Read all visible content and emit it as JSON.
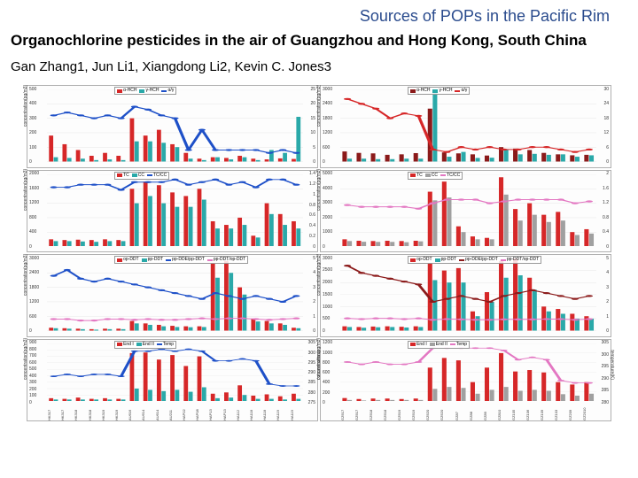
{
  "header_title": "Sources of POPs in the Pacific Rim",
  "paper_title": "Organochlorine pesticides in the air of Guangzhou and Hong Kong, South China",
  "authors": "Gan Zhang1, Jun Li1, Xiangdong Li2, Kevin C. Jones3",
  "colors": {
    "blue": "#1e50c8",
    "red": "#d62728",
    "teal": "#2aa9a9",
    "darkred": "#8b1a1a",
    "pink": "#e377c2",
    "grid": "#e0e0e0",
    "axis": "#666666",
    "bg": "#fdfdfd"
  },
  "cities": {
    "left": "Hong Kong",
    "right": "Guangzhou"
  },
  "x_categories_left": [
    "HK317",
    "HK317",
    "HK318",
    "HK318",
    "HK319",
    "HK319",
    "AU616",
    "AU614",
    "AU614",
    "AU211",
    "HAP02",
    "HAP08",
    "HAP13",
    "HAP13",
    "HA112",
    "HA118",
    "HA118",
    "HA119",
    "HA119"
  ],
  "x_categories_right": [
    "GZ617",
    "GZ617",
    "GZ618",
    "GZ618",
    "GZ619",
    "GZ619",
    "GZ620",
    "GZ620",
    "GZ87",
    "GZ88",
    "GZ89",
    "GZ810",
    "GZ105",
    "GZ106",
    "GZ109",
    "GZ103",
    "GZ209",
    "GZ2010"
  ],
  "rows": [
    {
      "name": "hch",
      "panels": [
        {
          "side": "left",
          "ylabel": "concentration(pg/m3)",
          "y2label": "",
          "series": [
            {
              "label": "α-HCH",
              "type": "bar",
              "color": "#d62728",
              "values": [
                180,
                120,
                80,
                40,
                60,
                40,
                300,
                180,
                220,
                120,
                60,
                20,
                30,
                25,
                40,
                20,
                15,
                22,
                18
              ]
            },
            {
              "label": "γ-HCH",
              "type": "bar",
              "color": "#2aa9a9",
              "values": [
                30,
                25,
                20,
                10,
                15,
                10,
                140,
                140,
                130,
                100,
                20,
                10,
                30,
                15,
                30,
                10,
                80,
                60,
                310
              ]
            },
            {
              "label": "α/γ",
              "type": "line",
              "color": "#1e50c8",
              "values": [
                16,
                17,
                16,
                15,
                16,
                15,
                19,
                18,
                16,
                15,
                4,
                11,
                4,
                4,
                4,
                4,
                3,
                4,
                3
              ]
            }
          ],
          "ylim": [
            0,
            500
          ],
          "ytick_step": 100,
          "y2lim": [
            0,
            25
          ],
          "y2tick_step": 5
        },
        {
          "side": "right",
          "ylabel": "concentration(pg/m3)",
          "y2label": "",
          "series": [
            {
              "label": "α-HCH",
              "type": "bar",
              "color": "#8b1a1a",
              "values": [
                420,
                360,
                340,
                280,
                300,
                350,
                2200,
                380,
                340,
                300,
                250,
                600,
                540,
                480,
                360,
                300,
                260,
                280
              ]
            },
            {
              "label": "γ-HCH",
              "type": "bar",
              "color": "#2aa9a9",
              "values": [
                120,
                120,
                100,
                100,
                120,
                120,
                2900,
                200,
                400,
                150,
                160,
                500,
                300,
                320,
                280,
                300,
                200,
                260
              ]
            },
            {
              "label": "α/γ",
              "type": "line",
              "color": "#d62728",
              "values": [
                26,
                24,
                22,
                18,
                20,
                19,
                5,
                4,
                6,
                5,
                6,
                5,
                5,
                6,
                6,
                5,
                4,
                5
              ]
            }
          ],
          "ylim": [
            0,
            3000
          ],
          "ytick_step": 600,
          "y2lim": [
            0,
            30
          ],
          "y2tick_step": 6
        }
      ]
    },
    {
      "name": "chlordane",
      "panels": [
        {
          "side": "left",
          "ylabel": "concentration(pg/m3)",
          "y2label": "",
          "series": [
            {
              "label": "TC",
              "type": "bar",
              "color": "#d62728",
              "values": [
                200,
                180,
                190,
                180,
                200,
                180,
                1600,
                1800,
                1700,
                1500,
                1400,
                1600,
                700,
                600,
                800,
                300,
                1200,
                900,
                700
              ]
            },
            {
              "label": "CC",
              "type": "bar",
              "color": "#2aa9a9",
              "values": [
                150,
                150,
                140,
                130,
                150,
                150,
                1200,
                1400,
                1200,
                1100,
                1100,
                1300,
                500,
                500,
                600,
                250,
                900,
                600,
                500
              ]
            },
            {
              "label": "TC/CC",
              "type": "line",
              "color": "#1e50c8",
              "values": [
                1.15,
                1.15,
                1.2,
                1.2,
                1.2,
                1.1,
                1.25,
                1.25,
                1.25,
                1.3,
                1.2,
                1.25,
                1.3,
                1.2,
                1.25,
                1.15,
                1.3,
                1.3,
                1.2
              ]
            }
          ],
          "ylim": [
            0,
            2000
          ],
          "ytick_step": 400,
          "y2lim": [
            0,
            1.4
          ],
          "y2tick_step": 0.2
        },
        {
          "side": "right",
          "ylabel": "concentration(pg/m3)",
          "y2label": "",
          "series": [
            {
              "label": "TC",
              "type": "bar",
              "color": "#d62728",
              "values": [
                500,
                400,
                380,
                400,
                380,
                400,
                3800,
                4500,
                1400,
                700,
                600,
                4800,
                2600,
                3000,
                2200,
                2400,
                1000,
                1200
              ]
            },
            {
              "label": "CC",
              "type": "bar",
              "color": "#a0a0a0",
              "values": [
                380,
                330,
                320,
                320,
                300,
                360,
                3200,
                3400,
                1000,
                500,
                500,
                3600,
                1800,
                2200,
                1700,
                1800,
                800,
                900
              ]
            },
            {
              "label": "TC/CC",
              "type": "line",
              "color": "#e377c2",
              "values": [
                1.15,
                1.1,
                1.1,
                1.1,
                1.1,
                1.05,
                1.2,
                1.3,
                1.3,
                1.3,
                1.2,
                1.25,
                1.3,
                1.3,
                1.3,
                1.3,
                1.2,
                1.25
              ]
            }
          ],
          "ylim": [
            0,
            5000
          ],
          "ytick_step": 1000,
          "y2lim": [
            0,
            2.0
          ],
          "y2tick_step": 0.4
        }
      ]
    },
    {
      "name": "ddt",
      "panels": [
        {
          "side": "left",
          "ylabel": "concentration(pg/m3)",
          "y2label": "",
          "series": [
            {
              "label": "op-DDT",
              "type": "bar",
              "color": "#d62728",
              "values": [
                120,
                100,
                80,
                60,
                80,
                80,
                400,
                300,
                240,
                200,
                180,
                180,
                2800,
                2900,
                1800,
                500,
                400,
                300,
                120
              ]
            },
            {
              "label": "pp-DDT",
              "type": "bar",
              "color": "#2aa9a9",
              "values": [
                100,
                80,
                60,
                40,
                60,
                60,
                300,
                240,
                180,
                150,
                140,
                150,
                2200,
                2400,
                1500,
                380,
                300,
                240,
                100
              ]
            },
            {
              "label": "pp-DDE/pp-DDT",
              "type": "line",
              "color": "#1e50c8",
              "values": [
                3.8,
                4.2,
                3.6,
                3.4,
                3.6,
                3.4,
                3.2,
                3.0,
                2.8,
                2.6,
                2.4,
                2.2,
                2.6,
                2.4,
                2.2,
                2.4,
                2.2,
                2.0,
                2.4
              ]
            },
            {
              "label": "pp-DDT/op-DDT",
              "type": "line",
              "color": "#e377c2",
              "values": [
                0.8,
                0.8,
                0.7,
                0.7,
                0.8,
                0.8,
                0.75,
                0.8,
                0.75,
                0.75,
                0.8,
                0.85,
                0.8,
                0.85,
                0.85,
                0.8,
                0.75,
                0.8,
                0.85
              ]
            }
          ],
          "ylim": [
            0,
            3000
          ],
          "ytick_step": 600,
          "y2lim": [
            0,
            5.0
          ],
          "y2tick_step": 1.0
        },
        {
          "side": "right",
          "ylabel": "concentration(pg/m3)",
          "y2label": "",
          "series": [
            {
              "label": "op-DDT",
              "type": "bar",
              "color": "#d62728",
              "values": [
                180,
                150,
                170,
                180,
                160,
                180,
                2800,
                2500,
                2600,
                800,
                1600,
                2900,
                3000,
                2200,
                1000,
                900,
                700,
                600
              ]
            },
            {
              "label": "pp-DDT",
              "type": "bar",
              "color": "#2aa9a9",
              "values": [
                150,
                120,
                140,
                150,
                130,
                150,
                2100,
                2000,
                2000,
                600,
                1200,
                2200,
                2300,
                1700,
                800,
                700,
                500,
                500
              ]
            },
            {
              "label": "pp-DDE/pp-DDT",
              "type": "line",
              "color": "#8b1a1a",
              "values": [
                4.5,
                4.0,
                3.8,
                3.6,
                3.4,
                3.2,
                2.0,
                2.2,
                2.4,
                2.2,
                2.0,
                2.4,
                2.6,
                2.8,
                2.6,
                2.4,
                2.2,
                2.4
              ]
            },
            {
              "label": "pp-DDT/op-DDT",
              "type": "line",
              "color": "#e377c2",
              "values": [
                0.85,
                0.8,
                0.85,
                0.85,
                0.8,
                0.85,
                0.75,
                0.8,
                0.78,
                0.75,
                0.75,
                0.78,
                0.78,
                0.78,
                0.8,
                0.8,
                0.75,
                0.8
              ]
            }
          ],
          "ylim": [
            0,
            3000
          ],
          "ytick_step": 500,
          "y2lim": [
            0,
            5.0
          ],
          "y2tick_step": 1.0
        }
      ]
    },
    {
      "name": "endosulfan",
      "panels": [
        {
          "side": "left",
          "ylabel": "concentration(pg/m3)",
          "y2label": "temperature(K)",
          "series": [
            {
              "label": "End I",
              "type": "bar",
              "color": "#d62728",
              "values": [
                50,
                40,
                60,
                40,
                50,
                40,
                750,
                760,
                650,
                720,
                550,
                700,
                120,
                140,
                250,
                90,
                110,
                80,
                120
              ]
            },
            {
              "label": "End II",
              "type": "bar",
              "color": "#2aa9a9",
              "values": [
                30,
                30,
                30,
                30,
                30,
                30,
                200,
                180,
                160,
                180,
                150,
                220,
                50,
                60,
                100,
                40,
                40,
                30,
                40
              ]
            },
            {
              "label": "Temp",
              "type": "line",
              "color": "#1e50c8",
              "values": [
                288,
                289,
                288,
                289,
                289,
                288,
                301,
                301,
                302,
                301,
                302,
                301,
                296,
                296,
                297,
                296,
                284,
                283,
                283
              ]
            }
          ],
          "ylim": [
            0,
            900
          ],
          "ytick_step": 100,
          "y2lim": [
            275,
            305
          ],
          "y2tick_step": 5,
          "show_xlabels": true
        },
        {
          "side": "right",
          "ylabel": "concentration(pg/m3)",
          "y2label": "temperature(K)",
          "series": [
            {
              "label": "End I",
              "type": "bar",
              "color": "#d62728",
              "values": [
                70,
                50,
                60,
                60,
                50,
                60,
                700,
                900,
                850,
                400,
                700,
                1000,
                620,
                650,
                600,
                400,
                350,
                400
              ]
            },
            {
              "label": "End II",
              "type": "bar",
              "color": "#a0a0a0",
              "values": [
                30,
                20,
                30,
                30,
                30,
                30,
                260,
                300,
                280,
                160,
                240,
                300,
                220,
                240,
                220,
                150,
                120,
                160
              ]
            },
            {
              "label": "Temp",
              "type": "line",
              "color": "#e377c2",
              "values": [
                297,
                296,
                297,
                296,
                296,
                297,
                303,
                303,
                303,
                303,
                303,
                302,
                298,
                299,
                298,
                289,
                288,
                288
              ]
            }
          ],
          "ylim": [
            0,
            1200
          ],
          "ytick_step": 200,
          "y2lim": [
            280,
            305
          ],
          "y2tick_step": 5,
          "show_xlabels": true
        }
      ]
    }
  ]
}
